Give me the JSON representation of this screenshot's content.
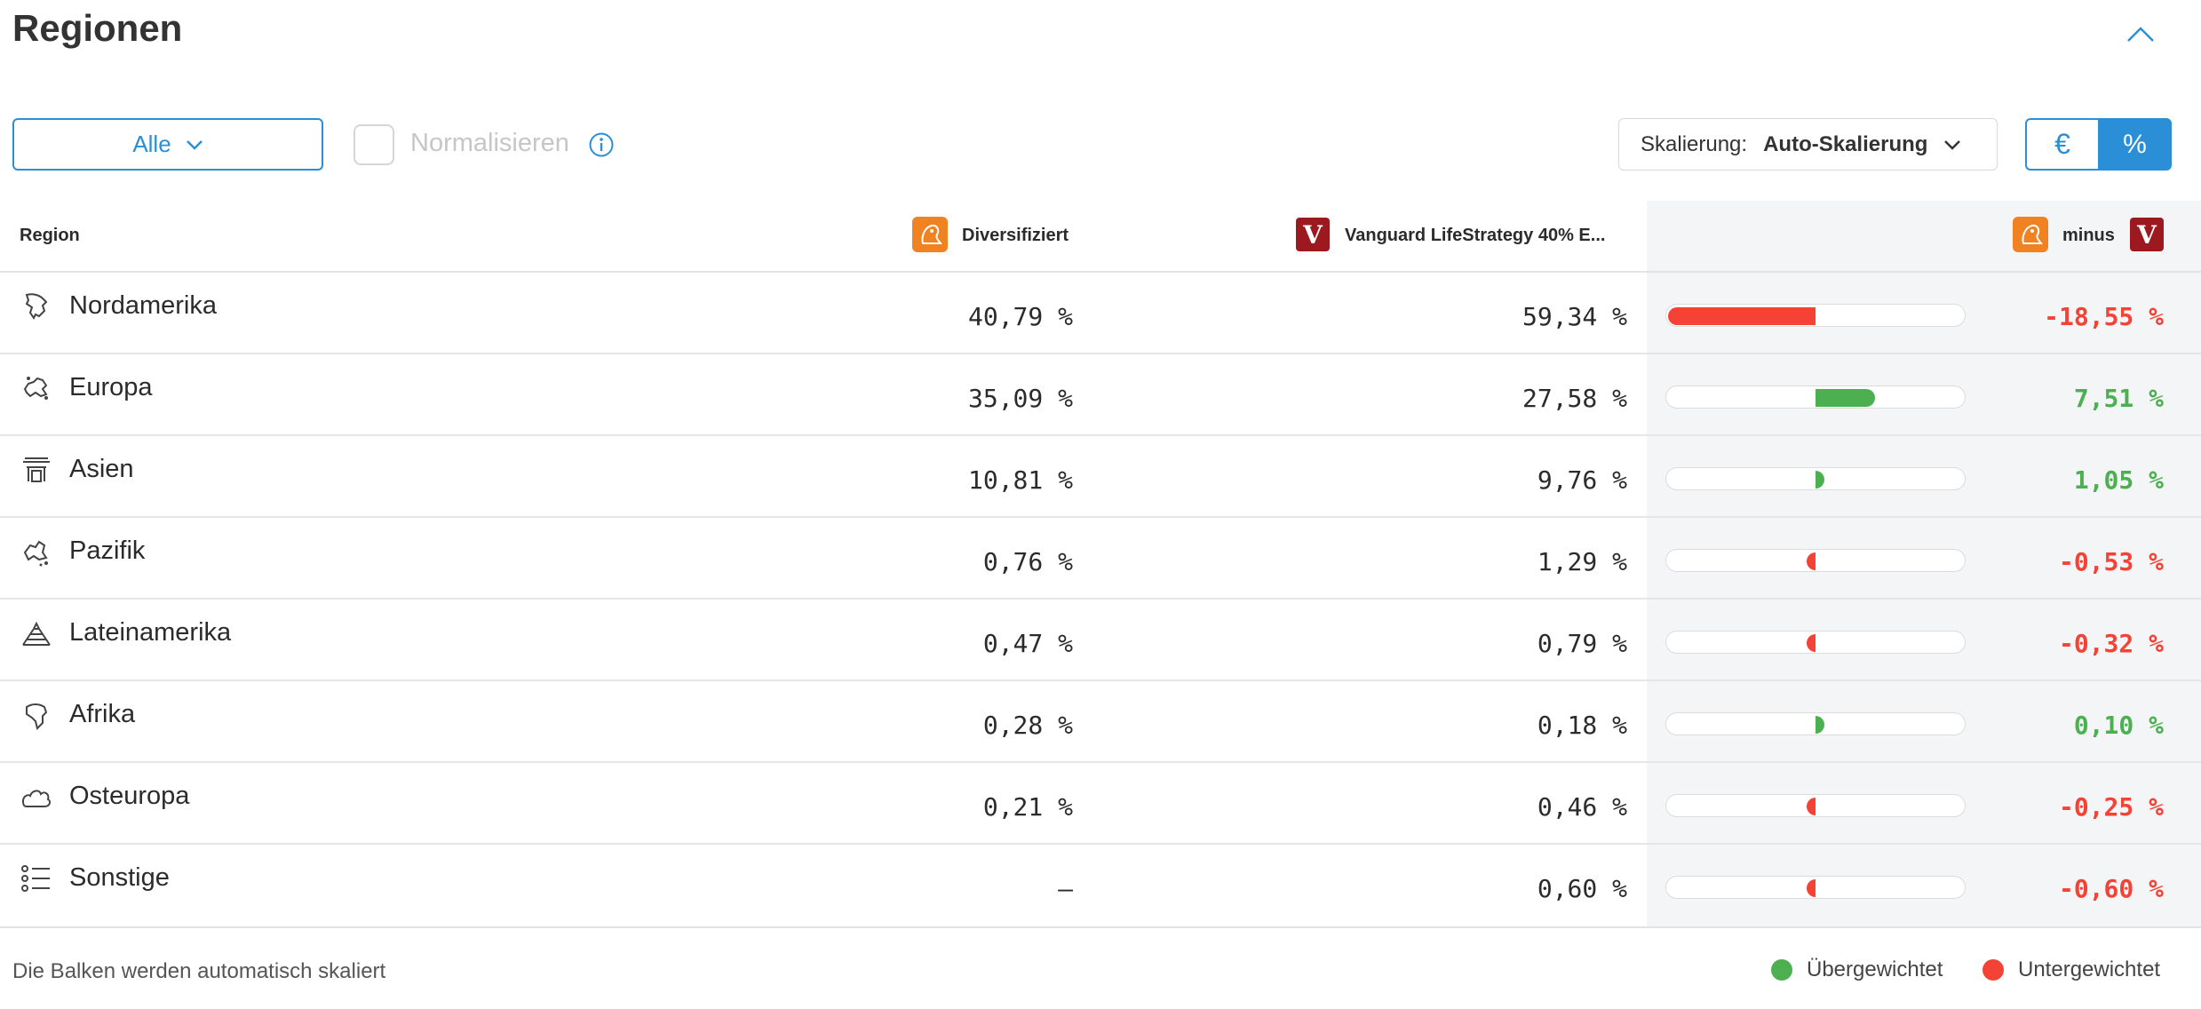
{
  "title": "Regionen",
  "controls": {
    "filter_label": "Alle",
    "normalize_label": "Normalisieren",
    "scaling_label": "Skalierung:",
    "scaling_value": "Auto-Skalierung",
    "unit_eur": "€",
    "unit_pct": "%",
    "unit_selected": "%"
  },
  "table": {
    "headers": {
      "region": "Region",
      "col_a": "Diversifiziert",
      "col_b": "Vanguard LifeStrategy 40% E...",
      "diff": "minus"
    },
    "rows": [
      {
        "name": "Nordamerika",
        "icon": "north-america-icon",
        "a": "40,79 %",
        "b": "59,34 %",
        "diff": "-18,55 %",
        "diff_value": -18.55
      },
      {
        "name": "Europa",
        "icon": "europe-icon",
        "a": "35,09 %",
        "b": "27,58 %",
        "diff": "7,51 %",
        "diff_value": 7.51
      },
      {
        "name": "Asien",
        "icon": "asia-icon",
        "a": "10,81 %",
        "b": "9,76 %",
        "diff": "1,05 %",
        "diff_value": 1.05
      },
      {
        "name": "Pazifik",
        "icon": "pacific-icon",
        "a": "0,76 %",
        "b": "1,29 %",
        "diff": "-0,53 %",
        "diff_value": -0.53
      },
      {
        "name": "Lateinamerika",
        "icon": "latin-america-icon",
        "a": "0,47 %",
        "b": "0,79 %",
        "diff": "-0,32 %",
        "diff_value": -0.32
      },
      {
        "name": "Afrika",
        "icon": "africa-icon",
        "a": "0,28 %",
        "b": "0,18 %",
        "diff": "0,10 %",
        "diff_value": 0.1
      },
      {
        "name": "Osteuropa",
        "icon": "eastern-europe-icon",
        "a": "0,21 %",
        "b": "0,46 %",
        "diff": "-0,25 %",
        "diff_value": -0.25
      },
      {
        "name": "Sonstige",
        "icon": "list-icon",
        "a": "—",
        "b": "0,60 %",
        "diff": "-0,60 %",
        "diff_value": -0.6
      }
    ]
  },
  "footer": {
    "note": "Die Balken werden automatisch skaliert",
    "legend_over": "Übergewichtet",
    "legend_under": "Untergewichtet"
  },
  "colors": {
    "accent": "#2a8fd6",
    "positive": "#4caf50",
    "negative": "#f44336",
    "ing_orange": "#f08222",
    "vanguard_red": "#9c1a1f"
  }
}
